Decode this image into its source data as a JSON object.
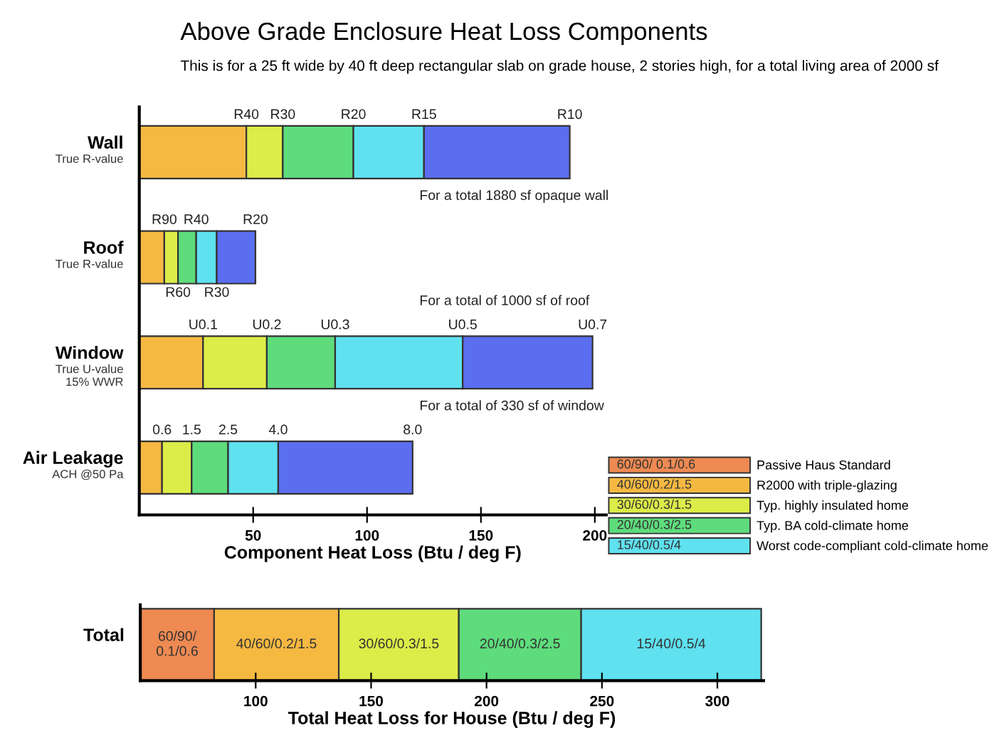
{
  "chart_data": [
    {
      "type": "bar",
      "orientation": "horizontal",
      "stacked": true,
      "title": "Above Grade Enclosure Heat Loss Components",
      "subtitle": "This is for a 25 ft wide by 40 ft deep rectangular slab on grade house, 2 stories high, for a total living area of 2000 sf",
      "xlabel": "Component Heat Loss (Btu / deg F)",
      "categories": [
        "Wall\nTrue R-value",
        "Roof\nTrue R-value",
        "Window\nTrue U-value\n15% WWR",
        "Air Leakage\nACH @50 Pa"
      ],
      "xlim": [
        0,
        205
      ],
      "xticks": [
        50,
        100,
        150,
        200
      ],
      "series": [
        {
          "color": "#f5b942",
          "values": [
            47,
            11,
            28,
            10
          ]
        },
        {
          "color": "#dcec48",
          "values": [
            16,
            6,
            28,
            13
          ]
        },
        {
          "color": "#5edc7c",
          "values": [
            31,
            8,
            30,
            16
          ]
        },
        {
          "color": "#5fe1ef",
          "values": [
            31,
            9,
            56,
            22
          ]
        },
        {
          "color": "#5b6ef0",
          "values": [
            64,
            17,
            57,
            59
          ]
        }
      ],
      "annotations": [
        {
          "text": "R40",
          "x": 47,
          "y": "Wall\nTrue R-value"
        },
        {
          "text": "R30",
          "x": 63,
          "y": "Wall\nTrue R-value"
        },
        {
          "text": "R20",
          "x": 94,
          "y": "Wall\nTrue R-value"
        },
        {
          "text": "R15",
          "x": 125,
          "y": "Wall\nTrue R-value"
        },
        {
          "text": "R10",
          "x": 189,
          "y": "Wall\nTrue R-value"
        },
        {
          "text": "R90",
          "x": 11,
          "y": "Roof\nTrue R-value"
        },
        {
          "text": "R60",
          "x": 17,
          "y": "Roof\nTrue R-value"
        },
        {
          "text": "R40",
          "x": 25,
          "y": "Roof\nTrue R-value"
        },
        {
          "text": "R30",
          "x": 34,
          "y": "Roof\nTrue R-value"
        },
        {
          "text": "R20",
          "x": 51,
          "y": "Roof\nTrue R-value"
        },
        {
          "text": "U0.1",
          "x": 28,
          "y": "Window\nTrue U-value\n15% WWR"
        },
        {
          "text": "U0.2",
          "x": 56,
          "y": "Window\nTrue U-value\n15% WWR"
        },
        {
          "text": "U0.3",
          "x": 86,
          "y": "Window\nTrue U-value\n15% WWR"
        },
        {
          "text": "U0.5",
          "x": 142,
          "y": "Window\nTrue U-value\n15% WWR"
        },
        {
          "text": "U0.7",
          "x": 199,
          "y": "Window\nTrue U-value\n15% WWR"
        },
        {
          "text": "0.6",
          "x": 10,
          "y": "Air Leakage\nACH @50 Pa"
        },
        {
          "text": "1.5",
          "x": 23,
          "y": "Air Leakage\nACH @50 Pa"
        },
        {
          "text": "2.5",
          "x": 39,
          "y": "Air Leakage\nACH @50 Pa"
        },
        {
          "text": "4.0",
          "x": 61,
          "y": "Air Leakage\nACH @50 Pa"
        },
        {
          "text": "8.0",
          "x": 120,
          "y": "Air Leakage\nACH @50 Pa"
        },
        "For a total 1880 sf opaque wall",
        "For a total of 1000 sf of roof",
        "For a total of 330 sf of window"
      ]
    },
    {
      "type": "bar",
      "orientation": "horizontal",
      "stacked": true,
      "xlabel": "Total Heat Loss for House (Btu / deg F)",
      "categories": [
        "Total"
      ],
      "xlim": [
        50,
        320
      ],
      "xticks": [
        100,
        150,
        200,
        250,
        300
      ],
      "legend": "top right",
      "series": [
        {
          "name": "Passive Haus Standard",
          "color": "#ee8a52",
          "values": [
            82
          ],
          "value_labels": [
            "60/90/\n0.1/0.6"
          ]
        },
        {
          "name": "R2000 with triple-glazing",
          "color": "#f5b942",
          "values": [
            54
          ],
          "value_labels": [
            "40/60/0.2/1.5"
          ]
        },
        {
          "name": "Typ. highly insulated home",
          "color": "#dcec48",
          "values": [
            52
          ],
          "value_labels": [
            "30/60/0.3/1.5"
          ]
        },
        {
          "name": "Typ. BA cold-climate home",
          "color": "#5edc7c",
          "values": [
            53
          ],
          "value_labels": [
            "20/40/0.3/2.5"
          ]
        },
        {
          "name": "Worst code-compliant cold-climate home",
          "color": "#5fe1ef",
          "values": [
            78
          ],
          "value_labels": [
            "15/40/0.5/4"
          ]
        }
      ]
    }
  ]
}
